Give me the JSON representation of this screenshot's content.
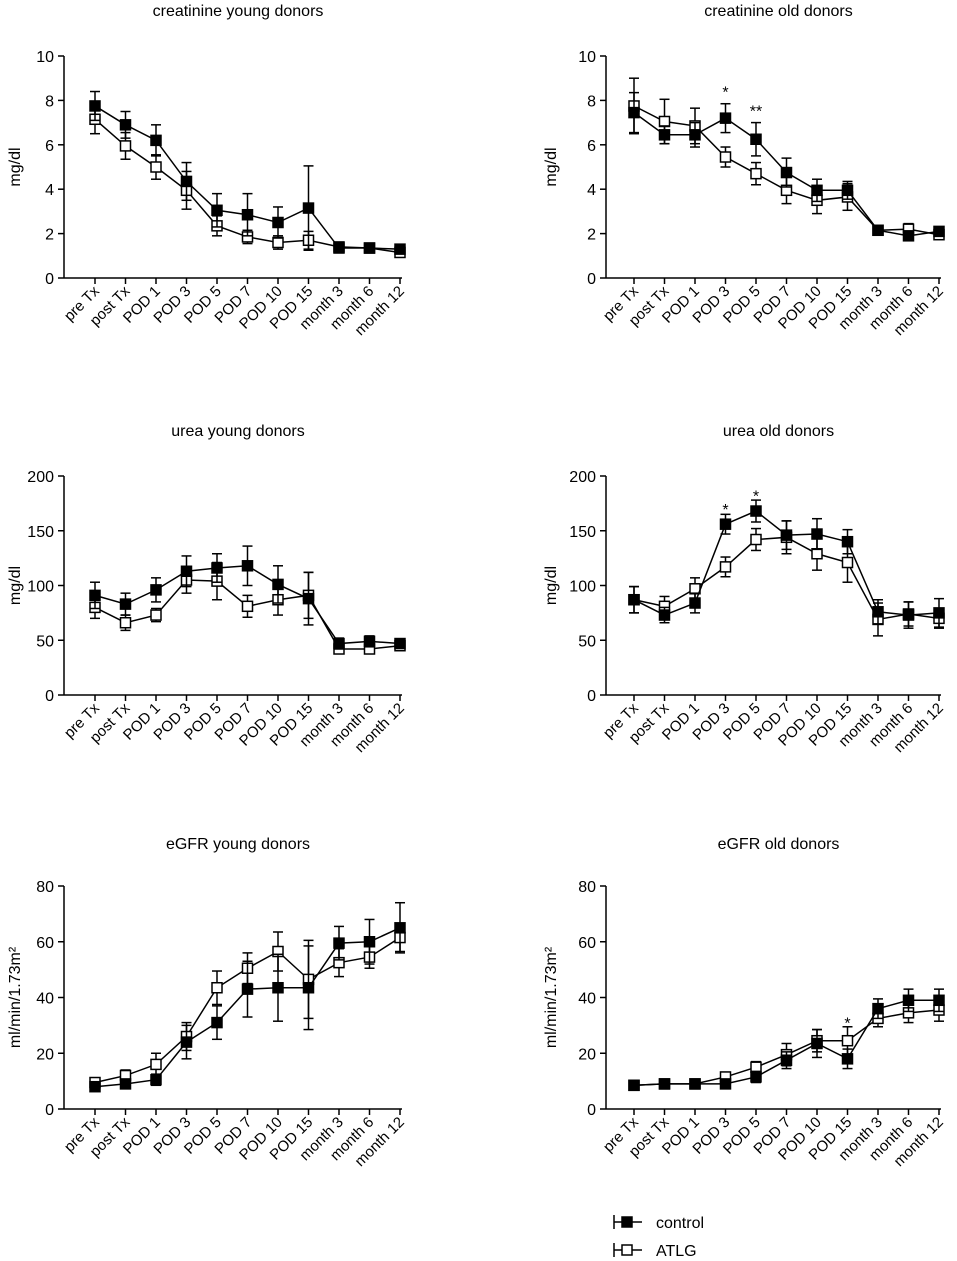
{
  "legend": {
    "control_label": "control",
    "atlg_label": "ATLG"
  },
  "colors": {
    "control_marker": "#000000",
    "atlg_marker": "#ffffff",
    "line": "#000000"
  },
  "chart_data": [
    {
      "type": "line",
      "title": "creatinine young donors",
      "xlabel": "",
      "ylabel": "mg/dl",
      "ylim": [
        0,
        10
      ],
      "yticks": [
        0,
        2,
        4,
        6,
        8,
        10
      ],
      "categories": [
        "pre Tx",
        "post Tx",
        "POD 1",
        "POD 3",
        "POD 5",
        "POD 7",
        "POD 10",
        "POD 15",
        "month 3",
        "month 6",
        "month 12"
      ],
      "series": [
        {
          "name": "control",
          "values": [
            7.75,
            6.9,
            6.2,
            4.35,
            3.05,
            2.85,
            2.5,
            3.15,
            1.35,
            1.35,
            1.3
          ],
          "errors": [
            0.65,
            0.6,
            0.7,
            0.85,
            0.75,
            0.95,
            0.7,
            1.9,
            0.1,
            0.1,
            0.1
          ]
        },
        {
          "name": "ATLG",
          "values": [
            7.15,
            5.95,
            5.0,
            3.95,
            2.35,
            1.85,
            1.6,
            1.7,
            1.4,
            1.35,
            1.15
          ],
          "errors": [
            0.65,
            0.6,
            0.55,
            0.85,
            0.45,
            0.3,
            0.3,
            0.4,
            0.1,
            0.1,
            0.1
          ]
        }
      ],
      "annotations": []
    },
    {
      "type": "line",
      "title": "creatinine old donors",
      "xlabel": "",
      "ylabel": "mg/dl",
      "ylim": [
        0,
        10
      ],
      "yticks": [
        0,
        2,
        4,
        6,
        8,
        10
      ],
      "categories": [
        "pre Tx",
        "post Tx",
        "POD 1",
        "POD 3",
        "POD 5",
        "POD 7",
        "POD 10",
        "POD 15",
        "month 3",
        "month 6",
        "month 12"
      ],
      "series": [
        {
          "name": "control",
          "values": [
            7.45,
            6.45,
            6.45,
            7.2,
            6.25,
            4.75,
            3.95,
            3.95,
            2.15,
            1.9,
            2.1
          ],
          "errors": [
            0.9,
            0.4,
            0.55,
            0.65,
            0.75,
            0.65,
            0.5,
            0.4,
            0.15,
            0.15,
            0.15
          ]
        },
        {
          "name": "ATLG",
          "values": [
            7.75,
            7.05,
            6.85,
            5.45,
            4.7,
            3.95,
            3.5,
            3.65,
            2.15,
            2.2,
            1.95
          ],
          "errors": [
            1.25,
            1.0,
            0.8,
            0.45,
            0.5,
            0.6,
            0.6,
            0.6,
            0.2,
            0.25,
            0.15
          ]
        }
      ],
      "annotations": [
        {
          "category": "POD 3",
          "text": "*",
          "y": 8.4
        },
        {
          "category": "POD 5",
          "text": "**",
          "y": 7.55
        }
      ]
    },
    {
      "type": "line",
      "title": "urea young donors",
      "xlabel": "",
      "ylabel": "mg/dl",
      "ylim": [
        0,
        200
      ],
      "yticks": [
        0,
        50,
        100,
        150,
        200
      ],
      "categories": [
        "pre Tx",
        "post Tx",
        "POD 1",
        "POD 3",
        "POD 5",
        "POD 7",
        "POD 10",
        "POD 15",
        "month 3",
        "month 6",
        "month 12"
      ],
      "series": [
        {
          "name": "control",
          "values": [
            91,
            83,
            96,
            113,
            116,
            118,
            101,
            88,
            47,
            49,
            47
          ],
          "errors": [
            12,
            10,
            11,
            14,
            13,
            18,
            17,
            24,
            5,
            5,
            3
          ]
        },
        {
          "name": "ATLG",
          "values": [
            80,
            66,
            73,
            105,
            104,
            81,
            87,
            91,
            42,
            42,
            45
          ],
          "errors": [
            10,
            7,
            6,
            12,
            17,
            10,
            14,
            21,
            3,
            3,
            3
          ]
        }
      ],
      "annotations": []
    },
    {
      "type": "line",
      "title": "urea old donors",
      "xlabel": "",
      "ylabel": "mg/dl",
      "ylim": [
        0,
        200
      ],
      "yticks": [
        0,
        50,
        100,
        150,
        200
      ],
      "categories": [
        "pre Tx",
        "post Tx",
        "POD 1",
        "POD 3",
        "POD 5",
        "POD 7",
        "POD 10",
        "POD 15",
        "month 3",
        "month 6",
        "month 12"
      ],
      "series": [
        {
          "name": "control",
          "values": [
            87,
            73,
            84,
            156,
            168,
            146,
            147,
            140,
            76,
            73,
            75
          ],
          "errors": [
            12,
            7,
            9,
            9,
            10,
            13,
            14,
            11,
            11,
            12,
            13
          ]
        },
        {
          "name": "ATLG",
          "values": [
            87,
            81,
            97,
            117,
            142,
            144,
            129,
            121,
            69,
            74,
            70
          ],
          "errors": [
            12,
            9,
            10,
            9,
            10,
            15,
            15,
            18,
            15,
            11,
            9
          ]
        }
      ],
      "annotations": [
        {
          "category": "POD 3",
          "text": "*",
          "y": 170
        },
        {
          "category": "POD 5",
          "text": "*",
          "y": 182
        }
      ]
    },
    {
      "type": "line",
      "title": "eGFR young donors",
      "xlabel": "",
      "ylabel": "ml/min/1.73m²",
      "ylim": [
        0,
        80
      ],
      "yticks": [
        0,
        20,
        40,
        60,
        80
      ],
      "categories": [
        "pre Tx",
        "post Tx",
        "POD 1",
        "POD 3",
        "POD 5",
        "POD 7",
        "POD 10",
        "POD 15",
        "month 3",
        "month 6",
        "month 12"
      ],
      "series": [
        {
          "name": "control",
          "values": [
            8,
            9,
            10.5,
            24,
            31,
            43,
            43.5,
            43.5,
            59.5,
            60,
            65
          ],
          "errors": [
            1,
            1,
            2,
            6,
            6,
            10,
            12,
            15,
            6,
            8,
            9
          ]
        },
        {
          "name": "ATLG",
          "values": [
            9.5,
            12,
            16,
            26,
            43.5,
            50.5,
            56.5,
            46.5,
            52.5,
            54.5,
            61.5
          ],
          "errors": [
            1.5,
            2,
            4,
            5,
            6,
            5.5,
            7,
            14,
            5,
            4,
            5
          ]
        }
      ],
      "annotations": []
    },
    {
      "type": "line",
      "title": "eGFR old donors",
      "xlabel": "",
      "ylabel": "ml/min/1.73m²",
      "ylim": [
        0,
        80
      ],
      "yticks": [
        0,
        20,
        40,
        60,
        80
      ],
      "categories": [
        "pre Tx",
        "post Tx",
        "POD 1",
        "POD 3",
        "POD 5",
        "POD 7",
        "POD 10",
        "POD 15",
        "month 3",
        "month 6",
        "month 12"
      ],
      "series": [
        {
          "name": "control",
          "values": [
            8.5,
            9,
            9,
            9,
            11.5,
            17.5,
            23.5,
            18,
            36,
            39,
            39
          ],
          "errors": [
            1,
            1,
            1,
            1,
            2,
            3,
            5,
            3.5,
            3.5,
            4,
            4
          ]
        },
        {
          "name": "ATLG",
          "values": [
            8.5,
            9,
            9,
            11.5,
            15,
            19.5,
            24.5,
            24.5,
            32.5,
            34.5,
            35.5
          ],
          "errors": [
            1,
            1,
            1,
            1.5,
            2,
            4,
            4,
            5,
            3,
            3.5,
            4
          ]
        }
      ],
      "annotations": [
        {
          "category": "POD 15",
          "text": "*",
          "y": 31
        }
      ]
    }
  ]
}
